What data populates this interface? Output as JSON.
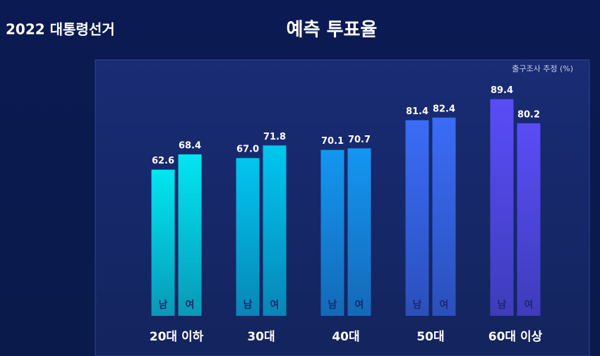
{
  "logo": "2022 대통령선거",
  "chart_data": {
    "type": "bar",
    "title": "예측 투표율",
    "subtitle": "출구조사 추정 (%)",
    "categories": [
      "20대 이하",
      "30대",
      "40대",
      "50대",
      "60대 이상"
    ],
    "colors": [
      "#00e6f0",
      "#00c6ee",
      "#1496f0",
      "#3a6cf6",
      "#5a4cf6"
    ],
    "series": [
      {
        "name": "남",
        "values": [
          62.6,
          67.0,
          70.1,
          81.4,
          89.4
        ],
        "value_labels": [
          "62.6",
          "67.0",
          "70.1",
          "81.4",
          "89.4"
        ]
      },
      {
        "name": "여",
        "values": [
          68.4,
          71.8,
          70.7,
          82.4,
          80.2
        ],
        "value_labels": [
          "68.4",
          "71.8",
          "70.7",
          "82.4",
          "80.2"
        ]
      }
    ],
    "ylim": [
      7,
      92
    ]
  }
}
